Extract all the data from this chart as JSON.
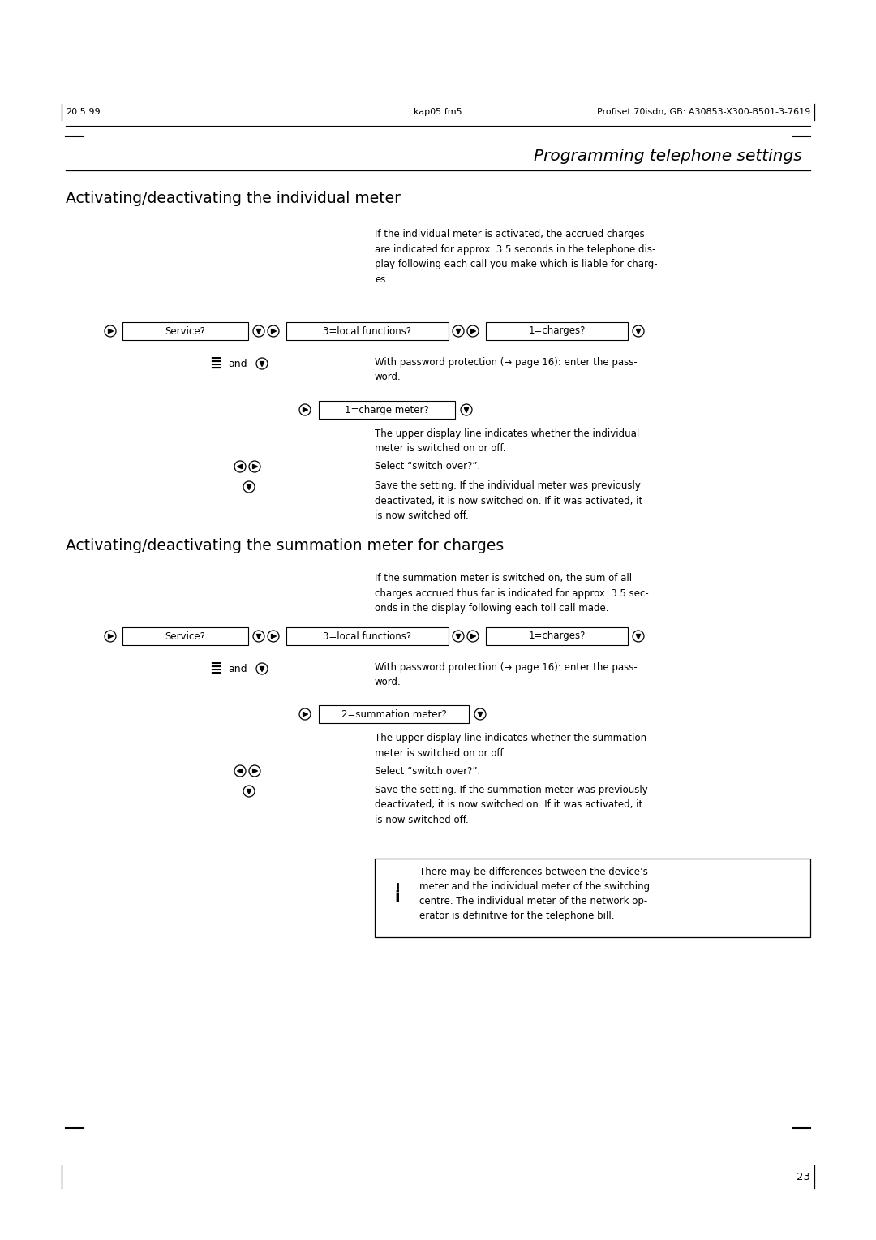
{
  "bg_color": "#ffffff",
  "text_color": "#000000",
  "page_header": {
    "left": "20.5.99",
    "center": "kap05.fm5",
    "right": "Profiset 70isdn, GB: A30853-X300-B501-3-7619"
  },
  "section_title": "Programming telephone settings",
  "subsection1": "Activating/deactivating the individual meter",
  "subsection2": "Activating/deactivating the summation meter for charges",
  "intro1": "If the individual meter is activated, the accrued charges\nare indicated for approx. 3.5 seconds in the telephone dis-\nplay following each call you make which is liable for charg-\nes.",
  "intro2": "If the summation meter is switched on, the sum of all\ncharges accrued thus far is indicated for approx. 3.5 sec-\nonds in the display following each toll call made.",
  "box_service": "Service?",
  "box_local": "3=local functions?",
  "box_charges": "1=charges?",
  "box_charge_meter": "1=charge meter?",
  "box_summation_meter": "2=summation meter?",
  "text_password": "With password protection (→ page 16): enter the pass-\nword.",
  "text_upper_display1": "The upper display line indicates whether the individual\nmeter is switched on or off.",
  "text_select": "Select “switch over?”.",
  "text_save1": "Save the setting. If the individual meter was previously\ndeactivated, it is now switched on. If it was activated, it\nis now switched off.",
  "text_upper_display2": "The upper display line indicates whether the summation\nmeter is switched on or off.",
  "text_save2": "Save the setting. If the summation meter was previously\ndeactivated, it is now switched on. If it was activated, it\nis now switched off.",
  "note_text": "There may be differences between the device’s\nmeter and the individual meter of the switching\ncentre. The individual meter of the network op-\nerator is definitive for the telephone bill.",
  "page_number": "23",
  "ml": 0.075,
  "mr": 0.925
}
